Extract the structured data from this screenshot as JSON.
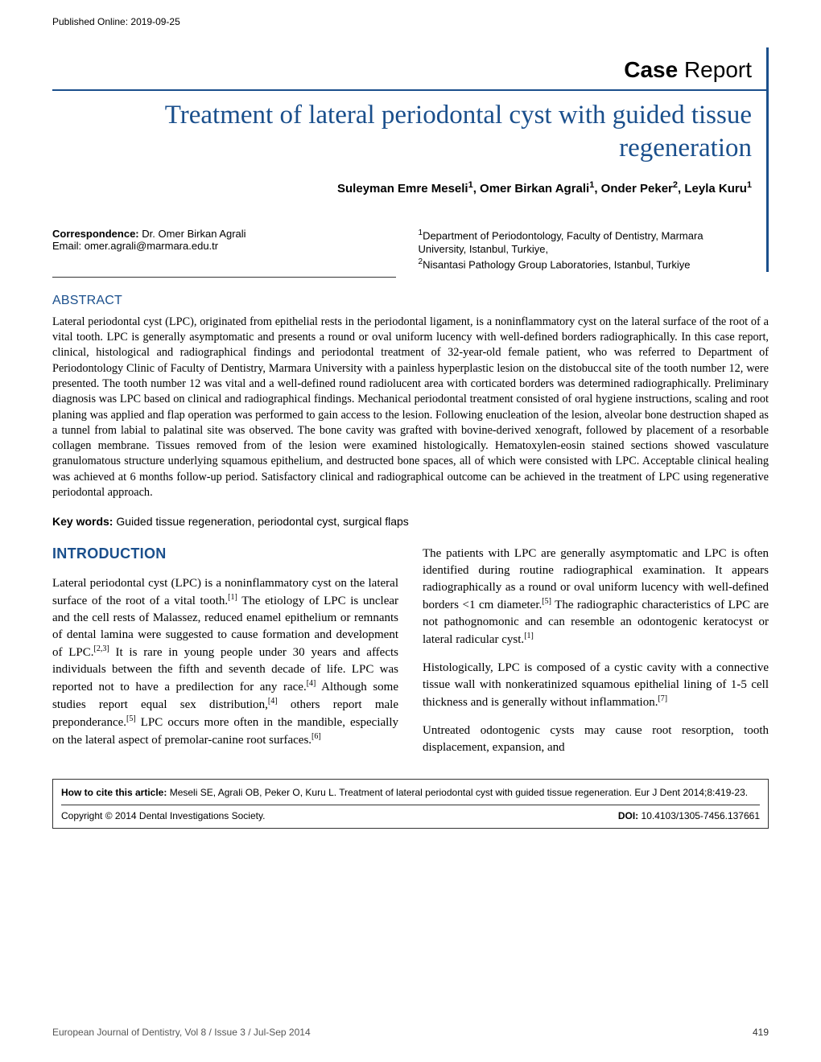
{
  "published_line": "Published Online: 2019-09-25",
  "section_label_bold": "Case",
  "section_label_light": " Report",
  "title": "Treatment of lateral periodontal cyst with guided tissue regeneration",
  "authors_html": "Suleyman Emre Meseli<sup>1</sup>, Omer Birkan Agrali<sup>1</sup>, Onder Peker<sup>2</sup>, Leyla Kuru<sup>1</sup>",
  "correspondence_label": "Correspondence: ",
  "correspondence_name": "Dr. Omer Birkan Agrali",
  "email_line": "Email: omer.agrali@marmara.edu.tr",
  "affiliations_html": "<sup>1</sup>Department of Periodontology, Faculty of Dentistry, Marmara University, Istanbul, Turkiye,<br><sup>2</sup>Nisantasi Pathology Group Laboratories, Istanbul, Turkiye",
  "abstract_head": "ABSTRACT",
  "abstract_text": "Lateral periodontal cyst (LPC), originated from epithelial rests in the periodontal ligament, is a noninflammatory cyst on the lateral surface of the root of a vital tooth. LPC is generally asymptomatic and presents a round or oval uniform lucency with well-defined borders radiographically. In this case report, clinical, histological and radiographical findings and periodontal treatment of 32-year-old female patient, who was referred to Department of Periodontology Clinic of Faculty of Dentistry, Marmara University with a painless hyperplastic lesion on the distobuccal site of the tooth number 12, were presented. The tooth number 12 was vital and a well-defined round radiolucent area with corticated borders was determined radiographically. Preliminary diagnosis was LPC based on clinical and radiographical findings. Mechanical periodontal treatment consisted of oral hygiene instructions, scaling and root planing was applied and flap operation was performed to gain access to the lesion. Following enucleation of the lesion, alveolar bone destruction shaped as a tunnel from labial to palatinal site was observed. The bone cavity was grafted with bovine-derived xenograft, followed by placement of a resorbable collagen membrane. Tissues removed from of the lesion were examined histologically. Hematoxylen-eosin stained sections showed vasculature granulomatous structure underlying squamous epithelium, and destructed bone spaces, all of which were consisted with LPC. Acceptable clinical healing was achieved at 6 months follow-up period. Satisfactory clinical and radiographical outcome can be achieved in the treatment of LPC using regenerative periodontal approach.",
  "keywords_label": "Key words: ",
  "keywords_text": "Guided tissue regeneration, periodontal cyst, surgical flaps",
  "intro_head": "INTRODUCTION",
  "para1_html": "Lateral periodontal cyst (LPC) is a noninflammatory cyst on the lateral surface of the root of a vital tooth.<sup>[1]</sup> The etiology of LPC is unclear and the cell rests of Malassez, reduced enamel epithelium or remnants of dental lamina were suggested to cause formation and development of LPC.<sup>[2,3]</sup> It is rare in young people under 30 years and affects individuals between the fifth and seventh decade of life. LPC was reported not to have a predilection for any race.<sup>[4]</sup> Although some studies report equal sex distribution,<sup>[4]</sup> others report male preponderance.<sup>[5]</sup> LPC occurs more often in the mandible, especially on the lateral aspect of premolar-canine root surfaces.<sup>[6]</sup>",
  "para2_html": "The patients with LPC are generally asymptomatic and LPC is often identified during routine radiographical examination. It appears radiographically as a round or oval uniform lucency with well-defined borders &lt;1 cm diameter.<sup>[5]</sup> The radiographic characteristics of LPC are not pathognomonic and can resemble an odontogenic keratocyst or lateral radicular cyst.<sup>[1]</sup>",
  "para3_html": "Histologically, LPC is composed of a cystic cavity with a connective tissue wall with nonkeratinized squamous epithelial lining of 1-5 cell thickness and is generally without inflammation.<sup>[7]</sup>",
  "para4_html": "Untreated odontogenic cysts may cause root resorption, tooth displacement, expansion, and",
  "cite_label": "How to cite this article: ",
  "cite_text": "Meseli SE, Agrali OB, Peker O, Kuru L. Treatment of lateral periodontal cyst with guided tissue regeneration. Eur J Dent 2014;8:419-23.",
  "copyright": "Copyright © 2014 Dental Investigations Society.",
  "doi_label": "DOI: ",
  "doi_value": "10.4103/1305-7456.137661",
  "journal_footer": "European Journal of Dentistry, Vol 8 / Issue 3 / Jul-Sep 2014",
  "page_number": "419",
  "colors": {
    "accent": "#1a4f8c",
    "text": "#000",
    "rule": "#333"
  }
}
